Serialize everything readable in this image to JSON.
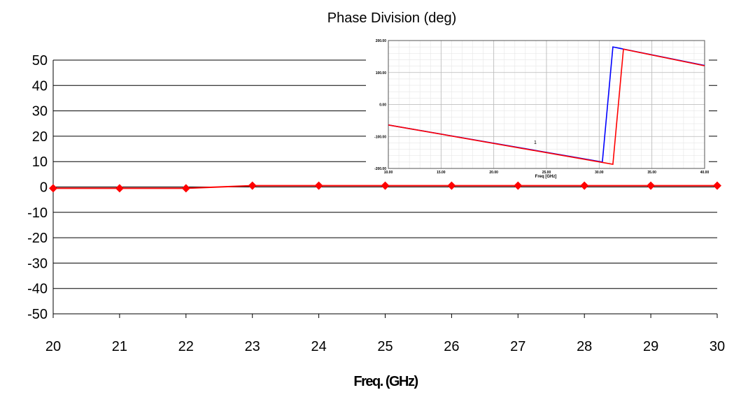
{
  "chart_data": [
    {
      "type": "line",
      "title": "Phase Division (deg)",
      "xlabel": "Freq. (GHz)",
      "ylabel": "",
      "xlim": [
        20,
        30
      ],
      "ylim": [
        -50,
        50
      ],
      "xticks": [
        "20",
        "21",
        "22",
        "23",
        "24",
        "25",
        "26",
        "27",
        "28",
        "29",
        "30"
      ],
      "yticks": [
        "50",
        "40",
        "30",
        "20",
        "10",
        "0",
        "-10",
        "-20",
        "-30",
        "-40",
        "-50"
      ],
      "grid": "horizontal",
      "legend": "none",
      "series": [
        {
          "color": "#ff0000",
          "marker": "diamond",
          "x": [
            20,
            21,
            22,
            23,
            24,
            25,
            26,
            27,
            28,
            29,
            30
          ],
          "y": [
            -0.5,
            -0.5,
            -0.5,
            0.5,
            0.5,
            0.5,
            0.5,
            0.5,
            0.5,
            0.5,
            0.5
          ]
        }
      ]
    },
    {
      "type": "line",
      "title": "",
      "xlabel": "Freq [GHz]",
      "ylabel": "",
      "xlim": [
        10,
        40
      ],
      "ylim": [
        -200,
        200
      ],
      "xticks": [
        "10.00",
        "15.00",
        "20.00",
        "25.00",
        "30.00",
        "35.00",
        "40.00"
      ],
      "yticks": [
        "200.00",
        "100.00",
        "0.00",
        "-100.00",
        "-200.00"
      ],
      "grid": "both",
      "legend": "none",
      "series": [
        {
          "color": "#0000ff",
          "x": [
            10.0,
            30.3,
            31.3,
            40.0
          ],
          "y": [
            -64,
            -180,
            180,
            122
          ]
        },
        {
          "color": "#ff0000",
          "x": [
            10.0,
            31.3,
            32.3,
            40.0
          ],
          "y": [
            -64,
            -187,
            173,
            121
          ]
        }
      ],
      "annotations": [
        "1"
      ]
    }
  ]
}
